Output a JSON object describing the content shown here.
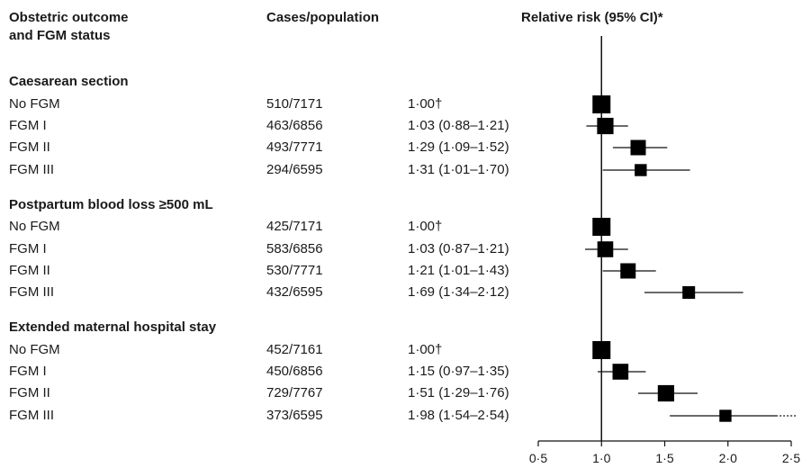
{
  "headers": {
    "col1_line1": "Obstetric outcome",
    "col1_line2": "and FGM status",
    "col2": "Cases/population",
    "col3": "Relative risk (95% CI)*"
  },
  "chart_data": {
    "type": "forest",
    "xlim": [
      0.5,
      2.5
    ],
    "x_ticks": [
      0.5,
      1.0,
      1.5,
      2.0,
      2.5
    ],
    "x_tick_labels": [
      "0·5",
      "1·0",
      "1·5",
      "2·0",
      "2·5"
    ],
    "reference_line": 1.0,
    "groups": [
      {
        "title": "Caesarean section",
        "rows": [
          {
            "label": "No FGM",
            "cases": "510/7171",
            "rr_text": "1·00†",
            "rr": 1.0,
            "lo": null,
            "hi": null,
            "weight": 1.0
          },
          {
            "label": "FGM I",
            "cases": "463/6856",
            "rr_text": "1·03 (0·88–1·21)",
            "rr": 1.03,
            "lo": 0.88,
            "hi": 1.21,
            "weight": 0.85
          },
          {
            "label": "FGM II",
            "cases": "493/7771",
            "rr_text": "1·29 (1·09–1·52)",
            "rr": 1.29,
            "lo": 1.09,
            "hi": 1.52,
            "weight": 0.75
          },
          {
            "label": "FGM III",
            "cases": "294/6595",
            "rr_text": "1·31 (1·01–1·70)",
            "rr": 1.31,
            "lo": 1.01,
            "hi": 1.7,
            "weight": 0.45
          }
        ]
      },
      {
        "title": "Postpartum blood loss ≥500 mL",
        "rows": [
          {
            "label": "No FGM",
            "cases": "425/7171",
            "rr_text": "1·00†",
            "rr": 1.0,
            "lo": null,
            "hi": null,
            "weight": 1.0
          },
          {
            "label": "FGM I",
            "cases": "583/6856",
            "rr_text": "1·03 (0·87–1·21)",
            "rr": 1.03,
            "lo": 0.87,
            "hi": 1.21,
            "weight": 0.8
          },
          {
            "label": "FGM II",
            "cases": "530/7771",
            "rr_text": "1·21 (1·01–1·43)",
            "rr": 1.21,
            "lo": 1.01,
            "hi": 1.43,
            "weight": 0.75
          },
          {
            "label": "FGM III",
            "cases": "432/6595",
            "rr_text": "1·69 (1·34–2·12)",
            "rr": 1.69,
            "lo": 1.34,
            "hi": 2.12,
            "weight": 0.5
          }
        ]
      },
      {
        "title": "Extended maternal hospital stay",
        "rows": [
          {
            "label": "No FGM",
            "cases": "452/7161",
            "rr_text": "1·00†",
            "rr": 1.0,
            "lo": null,
            "hi": null,
            "weight": 1.0
          },
          {
            "label": "FGM I",
            "cases": "450/6856",
            "rr_text": "1·15 (0·97–1·35)",
            "rr": 1.15,
            "lo": 0.97,
            "hi": 1.35,
            "weight": 0.8
          },
          {
            "label": "FGM II",
            "cases": "729/7767",
            "rr_text": "1·51 (1·29–1·76)",
            "rr": 1.51,
            "lo": 1.29,
            "hi": 1.76,
            "weight": 0.85
          },
          {
            "label": "FGM III",
            "cases": "373/6595",
            "rr_text": "1·98 (1·54–2·54)",
            "rr": 1.98,
            "lo": 1.54,
            "hi": 2.54,
            "weight": 0.45,
            "clipped_hi": true
          }
        ]
      }
    ]
  }
}
